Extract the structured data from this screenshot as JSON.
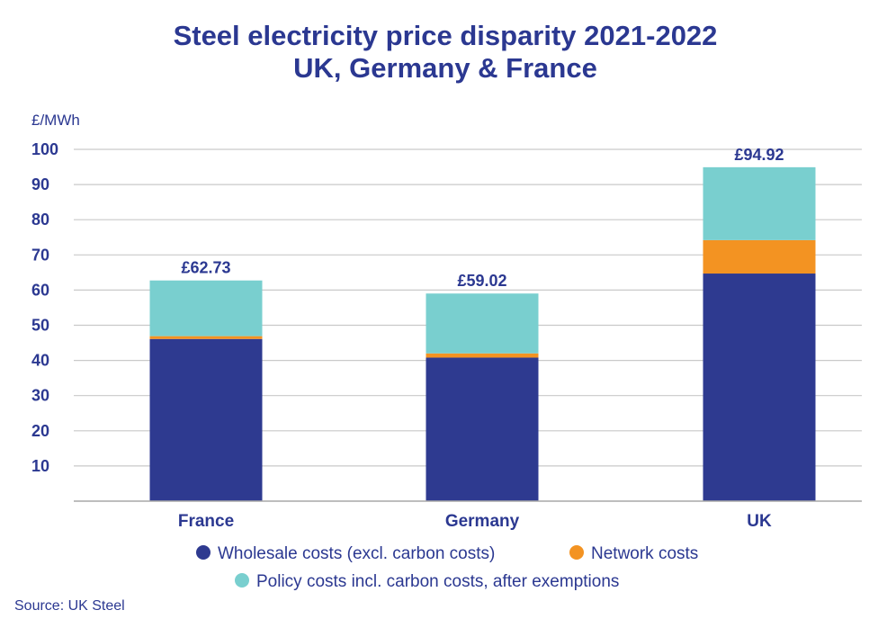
{
  "chart_data": {
    "type": "bar",
    "stacked": true,
    "title": [
      "Steel electricity price disparity 2021-2022",
      "UK, Germany & France"
    ],
    "ylabel": "£/MWh",
    "ylim": [
      0,
      100
    ],
    "yticks": [
      10,
      20,
      30,
      40,
      50,
      60,
      70,
      80,
      90,
      100
    ],
    "grid": true,
    "categories": [
      "France",
      "Germany",
      "UK"
    ],
    "totals_labels": [
      "£62.73",
      "£59.02",
      "£94.92"
    ],
    "series": [
      {
        "name": "Wholesale costs (excl. carbon costs)",
        "color": "#2e3a90",
        "values": [
          46.1,
          40.8,
          64.7
        ]
      },
      {
        "name": "Network costs",
        "color": "#f39322",
        "values": [
          0.8,
          1.2,
          9.5
        ]
      },
      {
        "name": "Policy costs incl. carbon costs, after exemptions",
        "color": "#79cfcf",
        "values": [
          15.83,
          17.02,
          20.72
        ]
      }
    ],
    "legend_position": "bottom",
    "source": "Source: UK Steel"
  }
}
